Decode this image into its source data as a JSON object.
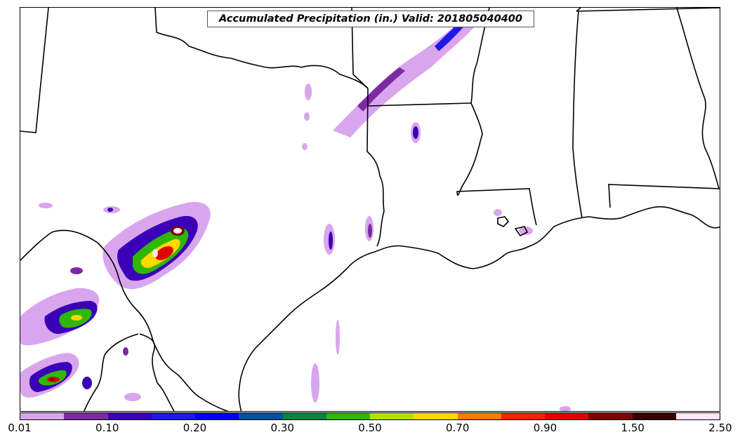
{
  "title": "Accumulated Precipitation (in.) Valid: 201805040400",
  "colorbar": {
    "colors": [
      "#d9a6ee",
      "#7b2aa0",
      "#3a00b8",
      "#1f18e6",
      "#0000f0",
      "#0050a0",
      "#00863e",
      "#30b800",
      "#b6e100",
      "#ffd800",
      "#ff7a00",
      "#ff2000",
      "#e00000",
      "#7e0000",
      "#3a0000",
      "#fde6f5"
    ],
    "tick_labels": [
      "0.01",
      "0.10",
      "0.20",
      "0.30",
      "0.50",
      "0.70",
      "0.90",
      "1.50",
      "2.50"
    ]
  }
}
